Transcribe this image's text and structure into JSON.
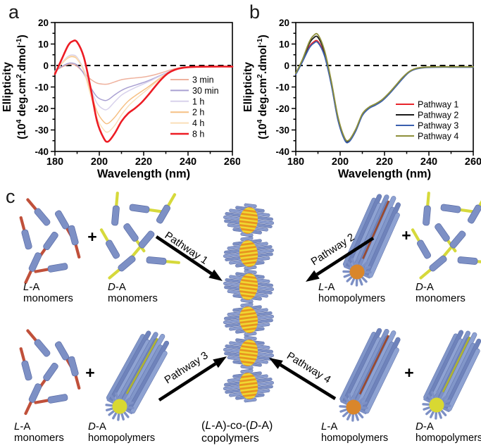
{
  "figure": {
    "panel_labels": {
      "a": "a",
      "b": "b",
      "c": "c"
    }
  },
  "chart_data": [
    {
      "id": "a",
      "type": "line",
      "title": "",
      "xlabel": "Wavelength (nm)",
      "ylabel_line1": "Ellipticity",
      "ylabel_line2": [
        {
          "t": "(10"
        },
        {
          "t": "4",
          "sup": true
        },
        {
          "t": " deg.cm"
        },
        {
          "t": "2",
          "sup": true
        },
        {
          "t": ".dmol"
        },
        {
          "t": "-1",
          "sup": true
        },
        {
          "t": ")"
        }
      ],
      "xlim": [
        180,
        260
      ],
      "ylim": [
        -40,
        20
      ],
      "xticks": [
        180,
        200,
        220,
        240,
        260
      ],
      "yticks": [
        20,
        10,
        0,
        -10,
        -20,
        -30,
        -40
      ],
      "x_minor_step": 10,
      "y_minor_step": 5,
      "zero_line_dashed": true,
      "grid": false,
      "legend_position": "bottom-right",
      "x": [
        180,
        183,
        186,
        188,
        190,
        193,
        196,
        199,
        202,
        204,
        207,
        210,
        213,
        216,
        219,
        222,
        225,
        228,
        231,
        234,
        238,
        244,
        252,
        260
      ],
      "series": [
        {
          "name": "3 min",
          "color": "#efb29e",
          "width": 1.5,
          "values": [
            -2.5,
            -0.8,
            0.5,
            0.6,
            -0.4,
            -3.3,
            -6.3,
            -8.2,
            -8.7,
            -8.6,
            -7.6,
            -6.6,
            -6.1,
            -5.8,
            -5.5,
            -5.0,
            -4.3,
            -3.4,
            -2.4,
            -1.5,
            -0.8,
            -0.5,
            -0.4,
            -0.4
          ]
        },
        {
          "name": "30 min",
          "color": "#a9a0d2",
          "width": 1.5,
          "values": [
            -2.5,
            -0.5,
            1.0,
            1.1,
            0.2,
            -3.8,
            -10.0,
            -14.6,
            -16.2,
            -15.9,
            -13.6,
            -11.6,
            -10.2,
            -9.2,
            -8.2,
            -7.1,
            -5.8,
            -4.4,
            -3.1,
            -1.9,
            -1.0,
            -0.6,
            -0.5,
            -0.5
          ]
        },
        {
          "name": "1 h",
          "color": "#d8d2ec",
          "width": 1.5,
          "values": [
            -2.8,
            1.2,
            4.3,
            4.9,
            3.8,
            -1.8,
            -10.5,
            -17.6,
            -20.4,
            -20.1,
            -16.8,
            -13.8,
            -11.9,
            -10.4,
            -9.0,
            -7.6,
            -6.1,
            -4.6,
            -3.2,
            -2.0,
            -1.0,
            -0.6,
            -0.5,
            -0.5
          ]
        },
        {
          "name": "2 h",
          "color": "#f6c084",
          "width": 1.5,
          "values": [
            -3.0,
            0.8,
            3.6,
            4.1,
            3.0,
            -2.5,
            -12.0,
            -21.5,
            -26.2,
            -26.9,
            -24.0,
            -20.0,
            -16.6,
            -14.2,
            -12.1,
            -10.0,
            -7.7,
            -5.4,
            -3.4,
            -2.0,
            -1.0,
            -0.6,
            -0.5,
            -0.5
          ]
        },
        {
          "name": "4 h",
          "color": "#fadfb9",
          "width": 1.5,
          "values": [
            -3.2,
            0.9,
            3.9,
            4.4,
            3.3,
            -2.6,
            -13.5,
            -24.5,
            -29.9,
            -30.9,
            -27.8,
            -23.0,
            -19.0,
            -16.0,
            -13.4,
            -10.9,
            -8.3,
            -5.8,
            -3.6,
            -2.1,
            -1.0,
            -0.6,
            -0.5,
            -0.5
          ]
        },
        {
          "name": "8 h",
          "color": "#ed1c24",
          "width": 2.6,
          "values": [
            -4.0,
            2.8,
            9.4,
            11.3,
            10.9,
            4.0,
            -10.0,
            -26.0,
            -33.8,
            -35.4,
            -31.5,
            -26.0,
            -22.3,
            -20.0,
            -17.3,
            -13.8,
            -10.0,
            -6.4,
            -3.6,
            -2.0,
            -1.0,
            -0.6,
            -0.5,
            -0.5
          ]
        }
      ]
    },
    {
      "id": "b",
      "type": "line",
      "title": "",
      "xlabel": "Wavelength (nm)",
      "ylabel_line1": "Ellipticity",
      "ylabel_line2": [
        {
          "t": "(10"
        },
        {
          "t": "4",
          "sup": true
        },
        {
          "t": " deg.cm"
        },
        {
          "t": "2",
          "sup": true
        },
        {
          "t": ".dmol"
        },
        {
          "t": "-1",
          "sup": true
        },
        {
          "t": ")"
        }
      ],
      "xlim": [
        180,
        260
      ],
      "ylim": [
        -40,
        20
      ],
      "xticks": [
        180,
        200,
        220,
        240,
        260
      ],
      "yticks": [
        20,
        10,
        0,
        -10,
        -20,
        -30,
        -40
      ],
      "x_minor_step": 10,
      "y_minor_step": 5,
      "zero_line_dashed": true,
      "grid": false,
      "legend_position": "right-middle",
      "x": [
        180,
        183,
        186,
        188,
        190,
        193,
        196,
        199,
        202,
        204,
        207,
        210,
        213,
        216,
        219,
        222,
        225,
        228,
        231,
        234,
        238,
        244,
        252,
        260
      ],
      "series": [
        {
          "name": "Pathway 1",
          "color": "#e8242b",
          "width": 1.8,
          "values": [
            -4.0,
            2.0,
            8.6,
            10.9,
            11.2,
            4.8,
            -8.5,
            -25.0,
            -34.3,
            -35.2,
            -30.3,
            -23.0,
            -19.8,
            -18.2,
            -16.2,
            -13.2,
            -9.7,
            -6.1,
            -3.1,
            -1.6,
            -0.9,
            -0.7,
            -0.7,
            -0.7
          ]
        },
        {
          "name": "Pathway 2",
          "color": "#1a1a1a",
          "width": 1.8,
          "values": [
            -3.8,
            2.4,
            10.0,
            12.8,
            13.1,
            6.0,
            -7.8,
            -24.4,
            -34.0,
            -35.0,
            -30.0,
            -22.8,
            -19.6,
            -18.0,
            -16.0,
            -13.0,
            -9.5,
            -5.9,
            -3.0,
            -1.5,
            -0.8,
            -0.6,
            -0.6,
            -0.6
          ]
        },
        {
          "name": "Pathway 3",
          "color": "#3a5fae",
          "width": 1.8,
          "values": [
            -4.2,
            1.7,
            8.0,
            10.3,
            10.6,
            4.3,
            -8.9,
            -25.4,
            -34.6,
            -35.5,
            -30.6,
            -23.3,
            -20.0,
            -18.4,
            -16.4,
            -13.4,
            -9.9,
            -6.3,
            -3.2,
            -1.7,
            -1.0,
            -0.8,
            -0.8,
            -0.8
          ]
        },
        {
          "name": "Pathway 4",
          "color": "#8e8f3a",
          "width": 1.8,
          "values": [
            -3.6,
            2.8,
            10.8,
            13.9,
            14.3,
            6.8,
            -7.2,
            -23.8,
            -33.6,
            -34.7,
            -29.7,
            -22.5,
            -19.4,
            -17.8,
            -15.8,
            -12.8,
            -9.3,
            -5.7,
            -2.9,
            -1.4,
            -0.8,
            -0.6,
            -0.6,
            -0.6
          ]
        }
      ]
    }
  ],
  "panel_c": {
    "label": "c",
    "plus": "+",
    "pathways": [
      "Pathway 1",
      "Pathway 2",
      "Pathway 3",
      "Pathway 4"
    ],
    "lA": {
      "i": "L",
      "s": "-A"
    },
    "dA": {
      "i": "D",
      "s": "-A"
    },
    "monomers": "monomers",
    "homopolymers": "homopolymers",
    "product": {
      "p1": "(",
      "i1": "L",
      "p2": "-A)-co-(",
      "i2": "D",
      "p3": "-A)",
      "line2": "copolymers"
    },
    "colors": {
      "monomer_body": "#7d90c5",
      "monomer_body_edge": "#5a6ca6",
      "l_tail": "#c0503a",
      "d_tail": "#d6d93b",
      "l_core": "#d9862b",
      "d_core": "#d8d832",
      "l_line": "#9c4a2e",
      "d_line": "#b0b430",
      "helix_rod": "#7d90c5",
      "helix_core": "#e8941f",
      "helix_stripe": "#f0d832",
      "arrow": "#000000"
    }
  }
}
